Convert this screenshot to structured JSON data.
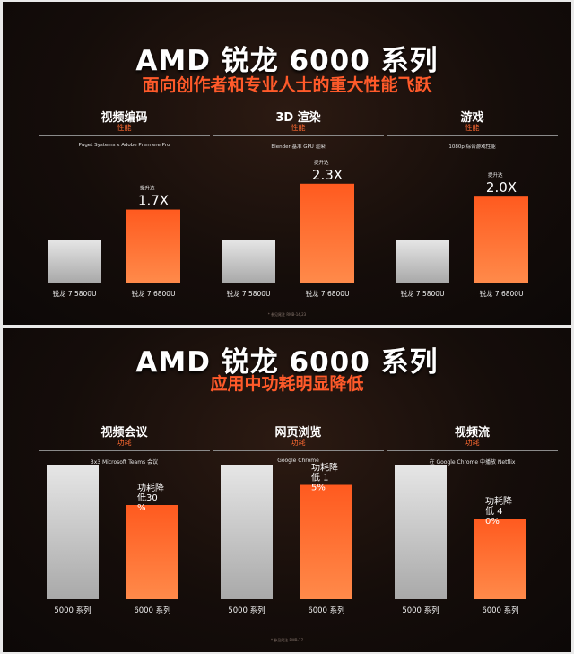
{
  "slides": [
    {
      "title": "AMD 锐龙 6000 系列",
      "subtitle": "面向创作者和专业人士的重大性能飞跃",
      "footnote": "* 参见尾注 RMB-14,23"
    },
    {
      "title": "AMD 锐龙 6000 系列",
      "subtitle": "应用中功耗明显降低",
      "footnote": "* 参见尾注 RMB-17"
    }
  ],
  "colors": {
    "baseline_bar": "#cfcfcf",
    "highlight_bar": "#ff5a1f",
    "accent_text": "#ff5a2a",
    "background": "#150d0a"
  },
  "chart_data": [
    {
      "type": "bar",
      "title": "视频编码",
      "metric": "性能",
      "subtitle": "Puget Systems x Adobe Premiere Pro",
      "categories": [
        "锐龙 7 5800U",
        "锐龙 7 6800U"
      ],
      "values": [
        1.0,
        1.7
      ],
      "ylim": [
        0,
        2.4
      ],
      "annotation": {
        "prefix": "提升达",
        "text": "1.7X"
      }
    },
    {
      "type": "bar",
      "title": "3D 渲染",
      "metric": "性能",
      "subtitle": "Blender 基准 GPU 渲染",
      "categories": [
        "锐龙 7 5800U",
        "锐龙 7 6800U"
      ],
      "values": [
        1.0,
        2.3
      ],
      "ylim": [
        0,
        2.4
      ],
      "annotation": {
        "prefix": "提升达",
        "text": "2.3X"
      }
    },
    {
      "type": "bar",
      "title": "游戏",
      "metric": "性能",
      "subtitle": "1080p 综合游戏性能",
      "categories": [
        "锐龙 7 5800U",
        "锐龙 7 6800U"
      ],
      "values": [
        1.0,
        2.0
      ],
      "ylim": [
        0,
        2.4
      ],
      "annotation": {
        "prefix": "提升达",
        "text": "2.0X"
      }
    },
    {
      "type": "bar",
      "title": "视频会议",
      "metric": "功耗",
      "subtitle": "3x3 Microsoft Teams 会议",
      "categories": [
        "5000 系列",
        "6000 系列"
      ],
      "values": [
        100,
        70
      ],
      "ylim": [
        0,
        110
      ],
      "annotation": {
        "prefix": "",
        "text": "功耗降低30%"
      }
    },
    {
      "type": "bar",
      "title": "网页浏览",
      "metric": "功耗",
      "subtitle": "Google Chrome",
      "categories": [
        "5000 系列",
        "6000 系列"
      ],
      "values": [
        100,
        85
      ],
      "ylim": [
        0,
        110
      ],
      "annotation": {
        "prefix": "",
        "text": "功耗降低 15%"
      }
    },
    {
      "type": "bar",
      "title": "视频流",
      "metric": "功耗",
      "subtitle": "在 Google Chrome 中播放 Netflix",
      "categories": [
        "5000 系列",
        "6000 系列"
      ],
      "values": [
        100,
        60
      ],
      "ylim": [
        0,
        110
      ],
      "annotation": {
        "prefix": "",
        "text": "功耗降低 40%"
      }
    }
  ]
}
